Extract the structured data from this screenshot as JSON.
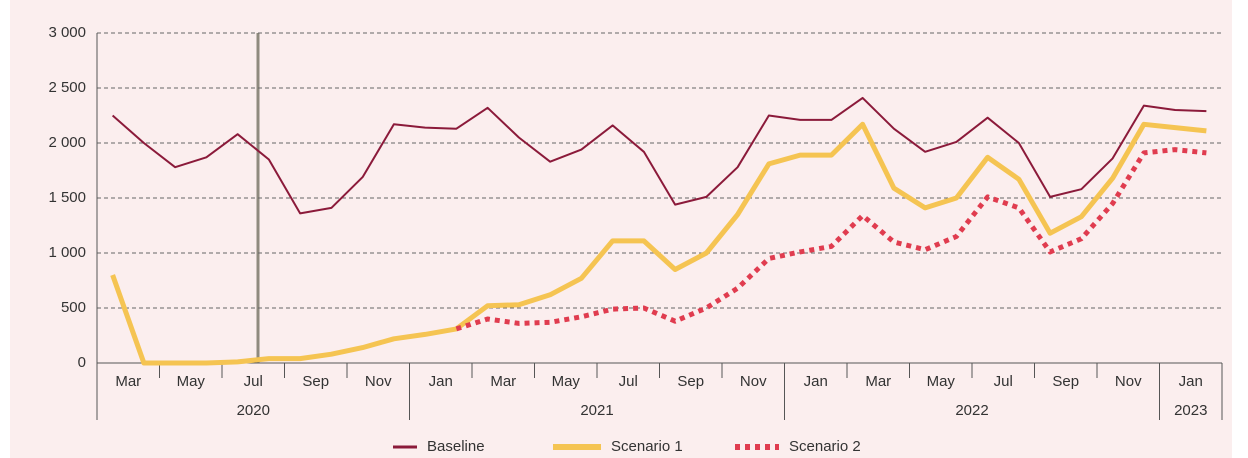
{
  "chart_data": {
    "type": "line",
    "categories": [
      "Mar",
      null,
      "May",
      null,
      "Jul",
      null,
      "Sep",
      null,
      "Nov",
      null,
      "Jan",
      null,
      "Mar",
      null,
      "May",
      null,
      "Jul",
      null,
      "Sep",
      null,
      "Nov",
      null,
      "Jan",
      null,
      "Mar",
      null,
      "May",
      null,
      "Jul",
      null,
      "Sep",
      null,
      "Nov",
      null,
      "Jan",
      null
    ],
    "year_groups": [
      {
        "label": "2020",
        "count": 10
      },
      {
        "label": "2021",
        "count": 12
      },
      {
        "label": "2022",
        "count": 12
      },
      {
        "label": "2023",
        "count": 2
      }
    ],
    "series": [
      {
        "name": "Baseline",
        "color": "#8b1a3a",
        "values": [
          2250,
          2000,
          1780,
          1870,
          2080,
          1850,
          1360,
          1410,
          1690,
          2170,
          2140,
          2130,
          2320,
          2050,
          1830,
          1940,
          2160,
          1920,
          1440,
          1510,
          1780,
          2250,
          2210,
          2210,
          2410,
          2130,
          1920,
          2010,
          2230,
          2000,
          1510,
          1580,
          1860,
          2340,
          2300,
          2290
        ]
      },
      {
        "name": "Scenario 1",
        "color": "#f5c452",
        "values": [
          800,
          0,
          0,
          0,
          10,
          40,
          40,
          80,
          140,
          220,
          260,
          310,
          520,
          530,
          620,
          770,
          1110,
          1110,
          850,
          1000,
          1350,
          1810,
          1890,
          1890,
          2170,
          1590,
          1410,
          1500,
          1870,
          1670,
          1180,
          1330,
          1680,
          2170,
          2140,
          2110
        ]
      },
      {
        "name": "Scenario 2",
        "color": "#e03c4f",
        "values": [
          null,
          null,
          null,
          null,
          null,
          null,
          null,
          null,
          null,
          null,
          null,
          310,
          400,
          360,
          370,
          420,
          490,
          500,
          380,
          500,
          680,
          950,
          1010,
          1060,
          1340,
          1100,
          1030,
          1150,
          1510,
          1410,
          1010,
          1130,
          1450,
          1910,
          1940,
          1910
        ]
      }
    ],
    "ylim": [
      0,
      3000
    ],
    "yticks": [
      0,
      500,
      {
        "value": 1000,
        "label": "1 000"
      },
      {
        "value": 1500,
        "label": "1 500"
      },
      {
        "value": 2000,
        "label": "2 000"
      },
      {
        "value": 2500,
        "label": "2 500"
      },
      {
        "value": 3000,
        "label": "3 000"
      }
    ],
    "grid": true
  }
}
